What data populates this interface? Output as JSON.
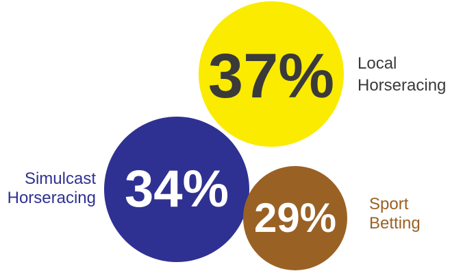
{
  "chart_data": {
    "type": "bubble",
    "series": [
      {
        "name": "Local\nHorseracing",
        "label": "Local Horseracing",
        "value": 37,
        "display": "37%",
        "color": "#FAEB00",
        "text_color": "#3A3A3A",
        "label_color": "#3A3A3A"
      },
      {
        "name": "Simulcast\nHorseracing",
        "label": "Simulcast Horseracing",
        "value": 34,
        "display": "34%",
        "color": "#2F3192",
        "text_color": "#FFFFFF",
        "label_color": "#2F3192"
      },
      {
        "name": "Sport\nBetting",
        "label": "Sport Betting",
        "value": 29,
        "display": "29%",
        "color": "#9A6125",
        "text_color": "#FFFFFF",
        "label_color": "#9A6125"
      }
    ]
  }
}
